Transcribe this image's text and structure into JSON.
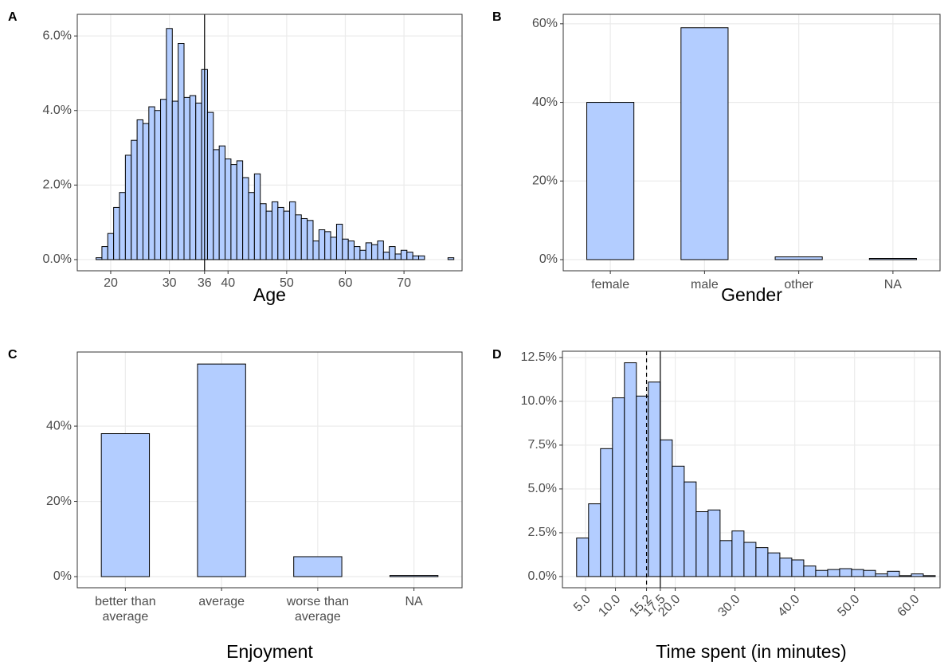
{
  "chart_data": [
    {
      "type": "histogram",
      "panel_label": "A",
      "xlabel": "Age",
      "bins": [
        17.5,
        18.5,
        19.5,
        20.5,
        21.5,
        22.5,
        23.5,
        24.5,
        25.5,
        26.5,
        27.5,
        28.5,
        29.5,
        30.5,
        31.5,
        32.5,
        33.5,
        34.5,
        35.5,
        36.5,
        37.5,
        38.5,
        39.5,
        40.5,
        41.5,
        42.5,
        43.5,
        44.5,
        45.5,
        46.5,
        47.5,
        48.5,
        49.5,
        50.5,
        51.5,
        52.5,
        53.5,
        54.5,
        55.5,
        56.5,
        57.5,
        58.5,
        59.5,
        60.5,
        61.5,
        62.5,
        63.5,
        64.5,
        65.5,
        66.5,
        67.5,
        68.5,
        69.5,
        70.5,
        71.5,
        72.5,
        73.5,
        74.5,
        75.5,
        76.5,
        77.5,
        78.5
      ],
      "values": [
        0.05,
        0.35,
        0.7,
        1.4,
        1.8,
        2.8,
        3.2,
        3.75,
        3.65,
        4.1,
        4.0,
        4.3,
        6.2,
        4.25,
        5.8,
        4.35,
        4.4,
        4.2,
        5.1,
        3.95,
        2.95,
        3.05,
        2.7,
        2.55,
        2.65,
        2.2,
        1.8,
        2.3,
        1.5,
        1.3,
        1.55,
        1.4,
        1.3,
        1.55,
        1.2,
        1.1,
        1.05,
        0.5,
        0.8,
        0.75,
        0.6,
        0.95,
        0.55,
        0.5,
        0.35,
        0.25,
        0.45,
        0.4,
        0.5,
        0.2,
        0.35,
        0.15,
        0.25,
        0.2,
        0.1,
        0.1,
        0,
        0,
        0,
        0,
        0.05
      ],
      "color": "#b3cdff",
      "xlim": [
        14.3,
        79.9
      ],
      "ylim": [
        -0.3,
        6.58
      ],
      "xticks": [
        20,
        30,
        36,
        40,
        50,
        60,
        70
      ],
      "yticks": [
        {
          "value": 0,
          "label": "0.0%"
        },
        {
          "value": 2,
          "label": "2.0%"
        },
        {
          "value": 4,
          "label": "4.0%"
        },
        {
          "value": 6,
          "label": "6.0%"
        }
      ],
      "vlines": [
        36
      ],
      "vline_styles": [
        "solid"
      ],
      "grid": true
    },
    {
      "type": "bar",
      "panel_label": "B",
      "xlabel": "Gender",
      "categories": [
        "female",
        "male",
        "other",
        "NA"
      ],
      "values": [
        40,
        59,
        0.7,
        0.3
      ],
      "color": "#b3cdff",
      "ylim": [
        -2.84,
        62.4
      ],
      "yticks": [
        {
          "value": 0,
          "label": "0%"
        },
        {
          "value": 20,
          "label": "20%"
        },
        {
          "value": 40,
          "label": "40%"
        },
        {
          "value": 60,
          "label": "60%"
        }
      ],
      "grid": true
    },
    {
      "type": "bar",
      "panel_label": "C",
      "xlabel": "Enjoyment",
      "categories": [
        "better than\naverage",
        "average",
        "worse than\naverage",
        "NA"
      ],
      "values": [
        38,
        56.5,
        5.3,
        0.3
      ],
      "color": "#b3cdff",
      "ylim": [
        -2.96,
        59.7
      ],
      "yticks": [
        {
          "value": 0,
          "label": "0%"
        },
        {
          "value": 20,
          "label": "20%"
        },
        {
          "value": 40,
          "label": "40%"
        }
      ],
      "grid": true
    },
    {
      "type": "histogram",
      "panel_label": "D",
      "xlabel": "Time spent (in minutes)",
      "bins": [
        3.5,
        5.5,
        7.5,
        9.5,
        11.5,
        13.5,
        15.5,
        17.5,
        19.5,
        21.5,
        23.5,
        25.5,
        27.5,
        29.5,
        31.5,
        33.5,
        35.5,
        37.5,
        39.5,
        41.5,
        43.5,
        45.5,
        47.5,
        49.5,
        51.5,
        53.5,
        55.5,
        57.5,
        59.5,
        61.5,
        63.5
      ],
      "values": [
        2.2,
        4.15,
        7.3,
        10.2,
        12.2,
        10.3,
        11.1,
        7.8,
        6.3,
        5.4,
        3.7,
        3.8,
        2.05,
        2.6,
        1.95,
        1.65,
        1.35,
        1.05,
        0.95,
        0.6,
        0.35,
        0.4,
        0.45,
        0.4,
        0.35,
        0.15,
        0.3,
        0.05,
        0.15,
        0.05
      ],
      "color": "#b3cdff",
      "xlim": [
        1.13,
        64.3
      ],
      "ylim": [
        -0.64,
        12.86
      ],
      "xticks": [
        {
          "value": 5,
          "label": "5.0"
        },
        {
          "value": 10,
          "label": "10.0"
        },
        15.2,
        17.5,
        {
          "value": 20,
          "label": "20.0"
        },
        {
          "value": 30,
          "label": "30.0"
        },
        {
          "value": 40,
          "label": "40.0"
        },
        {
          "value": 50,
          "label": "50.0"
        },
        {
          "value": 60,
          "label": "60.0"
        }
      ],
      "xtick_rotation": 45,
      "yticks": [
        {
          "value": 0,
          "label": "0.0%"
        },
        {
          "value": 2.5,
          "label": "2.5%"
        },
        {
          "value": 5,
          "label": "5.0%"
        },
        {
          "value": 7.5,
          "label": "7.5%"
        },
        {
          "value": 10,
          "label": "10.0%"
        },
        {
          "value": 12.5,
          "label": "12.5%"
        }
      ],
      "vlines": [
        15.2,
        17.5
      ],
      "vline_styles": [
        "dashed",
        "solid"
      ],
      "grid": true
    }
  ]
}
